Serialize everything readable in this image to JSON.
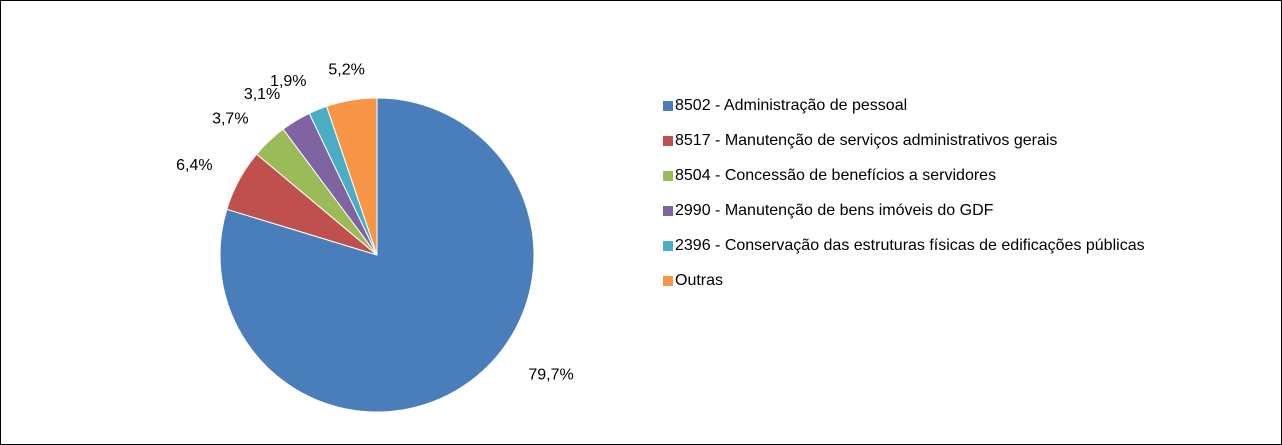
{
  "chart_data": {
    "type": "pie",
    "categories": [
      "8502 - Administração de pessoal",
      "8517 - Manutenção de serviços administrativos gerais",
      "8504 - Concessão de benefícios a servidores",
      "2990 - Manutenção de bens imóveis do GDF",
      "2396 - Conservação das estruturas físicas de edificações públicas",
      "Outras"
    ],
    "values": [
      79.7,
      6.4,
      3.7,
      3.1,
      1.9,
      5.2
    ],
    "value_labels": [
      "79,7%",
      "6,4%",
      "3,7%",
      "3,1%",
      "1,9%",
      "5,2%"
    ],
    "colors": [
      "#4a7ebb",
      "#c0504d",
      "#9bbb59",
      "#8064a2",
      "#4bacc6",
      "#f79646"
    ],
    "legend": "right"
  }
}
